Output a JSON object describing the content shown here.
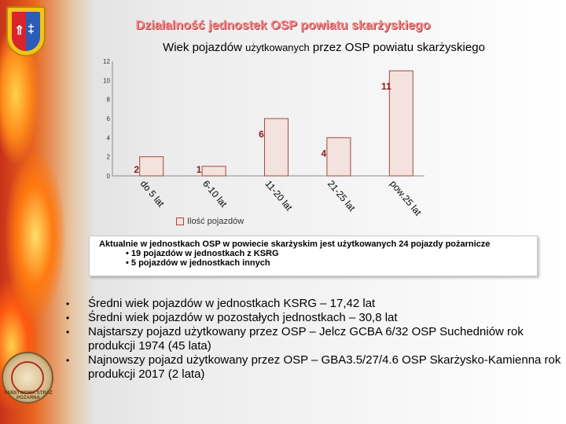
{
  "slide": {
    "title": "Działalność jednostek OSP powiatu skarżyskiego",
    "colors": {
      "title": "#f08a8a",
      "bar": "#f3e2dd",
      "bar_border": "#a04a3a",
      "label": "#8b1a1a"
    }
  },
  "chart_title": {
    "part1": "Wiek pojazdów ",
    "part2": "użytkowanych",
    "part3": " przez OSP powiatu skarżyskiego"
  },
  "chart_data": {
    "type": "bar",
    "title": "Wiek pojazdów użytkowanych przez OSP powiatu skarżyskiego",
    "categories": [
      "do 5 lat",
      "6-10 lat",
      "11-20 lat",
      "21-25 lat",
      "pow.25 lat"
    ],
    "series": [
      {
        "name": "Ilość pojazdów",
        "values": [
          2,
          1,
          6,
          4,
          11
        ]
      }
    ],
    "ylim": [
      0,
      12
    ],
    "yticks": [
      "0",
      "2",
      "4",
      "6",
      "8",
      "10",
      "12"
    ],
    "grid": false,
    "legend": "bottom-left",
    "data_labels": [
      "2",
      "1",
      "6",
      "4",
      "11"
    ]
  },
  "info": {
    "line1": "Aktualnie w jednostkach OSP w powiecie skarżyskim jest użytkowanych 24 pojazdy pożarnicze",
    "line2": "•  19 pojazdów w jednostkach z KSRG",
    "line3": "•  5 pojazdów w jednostkach innych"
  },
  "bullets": [
    {
      "mark": "•",
      "text": "Średni wiek pojazdów w jednostkach KSRG – 17,42 lat"
    },
    {
      "mark": "•",
      "text": "Średni wiek pojazdów w pozostałych jednostkach – 30,8 lat"
    },
    {
      "mark": "•",
      "text": "Najstarszy pojazd użytkowany przez OSP – Jelcz GCBA 6/32 OSP Suchedniów rok produkcji 1974 (45 lata)"
    },
    {
      "mark": "•",
      "text": "Najnowszy pojazd użytkowany przez OSP – GBA3.5/27/4.6 OSP Skarżysko-Kamienna rok produkcji 2017 (2 lata)"
    }
  ],
  "badge": {
    "text": "PAŃSTWOWA STRAŻ POŻARNA"
  }
}
